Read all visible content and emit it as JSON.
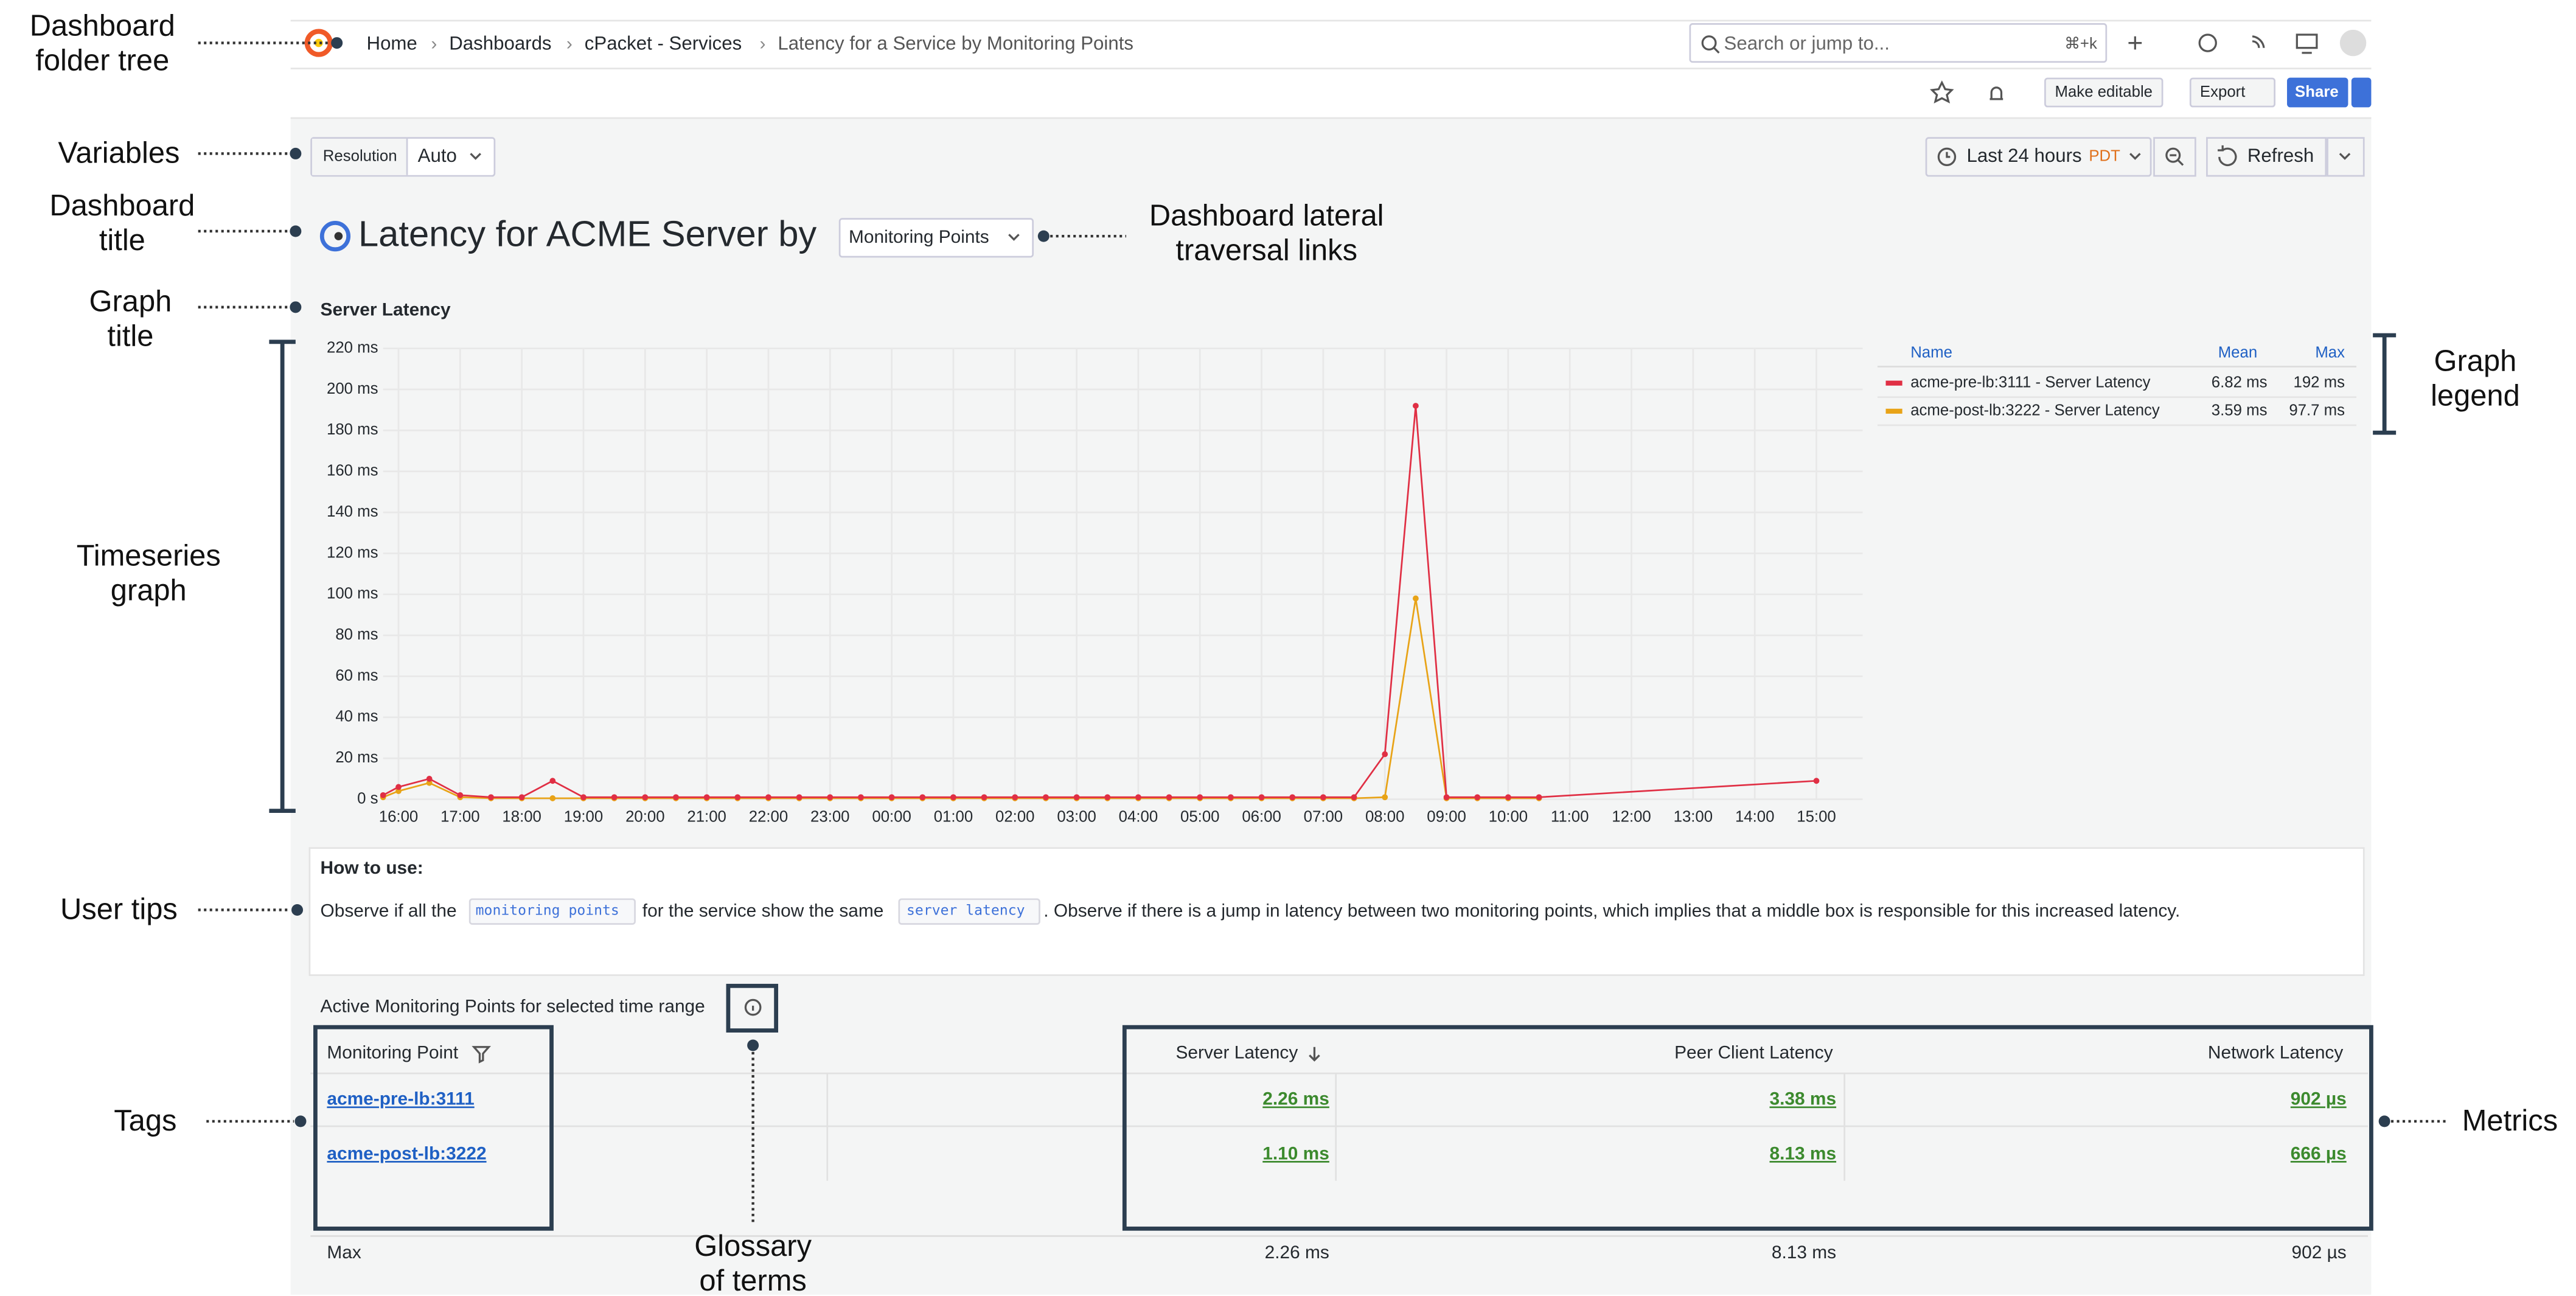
{
  "annotations": [
    [
      "Dashboard",
      "folder tree"
    ],
    [
      "Variables"
    ],
    [
      "Dashboard",
      "title"
    ],
    [
      "Graph",
      "title"
    ],
    [
      "Timeseries",
      "graph"
    ],
    [
      "User tips"
    ],
    [
      "Tags"
    ],
    [
      "Glossary",
      "of terms"
    ],
    [
      "Dashboard lateral",
      "traversal links"
    ],
    [
      "Graph",
      "legend"
    ],
    [
      "Metrics"
    ]
  ],
  "breadcrumbs": [
    "Home",
    "Dashboards",
    "cPacket - Services",
    "Latency for a Service by Monitoring Points"
  ],
  "search": {
    "placeholder": "Search or jump to...",
    "shortcut": "⌘+k"
  },
  "toolbar": {
    "make_editable": "Make editable",
    "export": "Export",
    "share": "Share"
  },
  "variable": {
    "label": "Resolution",
    "value": "Auto"
  },
  "time_picker": {
    "range": "Last 24 hours",
    "timezone": "PDT",
    "refresh": "Refresh"
  },
  "dashboard": {
    "title": "Latency for ACME Server by",
    "link": "Monitoring Points"
  },
  "chart_data": {
    "type": "line",
    "title": "Server Latency",
    "x": [
      "15:45",
      "16:00",
      "16:30",
      "17:00",
      "17:30",
      "18:00",
      "18:30",
      "19:00",
      "19:30",
      "20:00",
      "20:30",
      "21:00",
      "21:30",
      "22:00",
      "22:30",
      "23:00",
      "23:30",
      "00:00",
      "00:30",
      "01:00",
      "01:30",
      "02:00",
      "02:30",
      "03:00",
      "03:30",
      "04:00",
      "04:30",
      "05:00",
      "05:30",
      "06:00",
      "06:30",
      "07:00",
      "07:30",
      "08:00",
      "08:30",
      "09:00",
      "09:30",
      "10:00",
      "10:30",
      "15:00"
    ],
    "series": [
      {
        "name": "acme-pre-lb:3111 - Server Latency",
        "color": "#e02f44",
        "values": [
          2,
          6,
          10,
          2,
          1,
          1,
          9,
          1,
          1,
          1,
          1,
          1,
          1,
          1,
          1,
          1,
          1,
          1,
          1,
          1,
          1,
          1,
          1,
          1,
          1,
          1,
          1,
          1,
          1,
          1,
          1,
          1,
          1,
          22,
          192,
          1,
          1,
          1,
          1,
          9
        ]
      },
      {
        "name": "acme-post-lb:3222 - Server Latency",
        "color": "#e8a317",
        "values": [
          1,
          4,
          8,
          1,
          0.5,
          0.5,
          0.5,
          0.5,
          0.5,
          0.5,
          0.5,
          0.5,
          0.5,
          0.5,
          0.5,
          0.5,
          0.5,
          0.5,
          0.5,
          0.5,
          0.5,
          0.5,
          0.5,
          0.5,
          0.5,
          0.5,
          0.5,
          0.5,
          0.5,
          0.5,
          0.5,
          0.5,
          0.5,
          1,
          98,
          0.5,
          0.5,
          0.5,
          0.5,
          null
        ]
      }
    ],
    "xlim": [
      "15:45",
      "15:45"
    ],
    "xticks": [
      "16:00",
      "17:00",
      "18:00",
      "19:00",
      "20:00",
      "21:00",
      "22:00",
      "23:00",
      "00:00",
      "01:00",
      "02:00",
      "03:00",
      "04:00",
      "05:00",
      "06:00",
      "07:00",
      "08:00",
      "09:00",
      "10:00",
      "11:00",
      "12:00",
      "13:00",
      "14:00",
      "15:00"
    ],
    "ylim": [
      0,
      220
    ],
    "yticks": [
      {
        "value": 0,
        "label": "0 s"
      },
      {
        "value": 20,
        "label": "20 ms"
      },
      {
        "value": 40,
        "label": "40 ms"
      },
      {
        "value": 60,
        "label": "60 ms"
      },
      {
        "value": 80,
        "label": "80 ms"
      },
      {
        "value": 100,
        "label": "100 ms"
      },
      {
        "value": 120,
        "label": "120 ms"
      },
      {
        "value": 140,
        "label": "140 ms"
      },
      {
        "value": 160,
        "label": "160 ms"
      },
      {
        "value": 180,
        "label": "180 ms"
      },
      {
        "value": 200,
        "label": "200 ms"
      },
      {
        "value": 220,
        "label": "220 ms"
      }
    ],
    "grid": true,
    "legend": {
      "position": "right",
      "columns": [
        "Name",
        "Mean",
        "Max"
      ],
      "stats": [
        [
          "6.82 ms",
          "192 ms"
        ],
        [
          "3.59 ms",
          "97.7 ms"
        ]
      ]
    }
  },
  "tips": {
    "heading": "How to use:",
    "text": [
      "Observe if all the",
      "monitoring points",
      "for the service show the same",
      "server latency",
      ". Observe if there is a jump in latency between two monitoring points, which implies that a middle box is responsible for this increased latency."
    ]
  },
  "table": {
    "title": "Active Monitoring Points for selected time range",
    "columns": [
      "Monitoring Point",
      "Server Latency",
      "Peer Client Latency",
      "Network Latency"
    ],
    "rows": [
      [
        "acme-pre-lb:3111",
        "2.26 ms",
        "3.38 ms",
        "902 µs"
      ],
      [
        "acme-post-lb:3222",
        "1.10 ms",
        "8.13 ms",
        "666 µs"
      ]
    ],
    "footer": [
      "Max",
      "2.26 ms",
      "8.13 ms",
      "902 µs"
    ]
  }
}
